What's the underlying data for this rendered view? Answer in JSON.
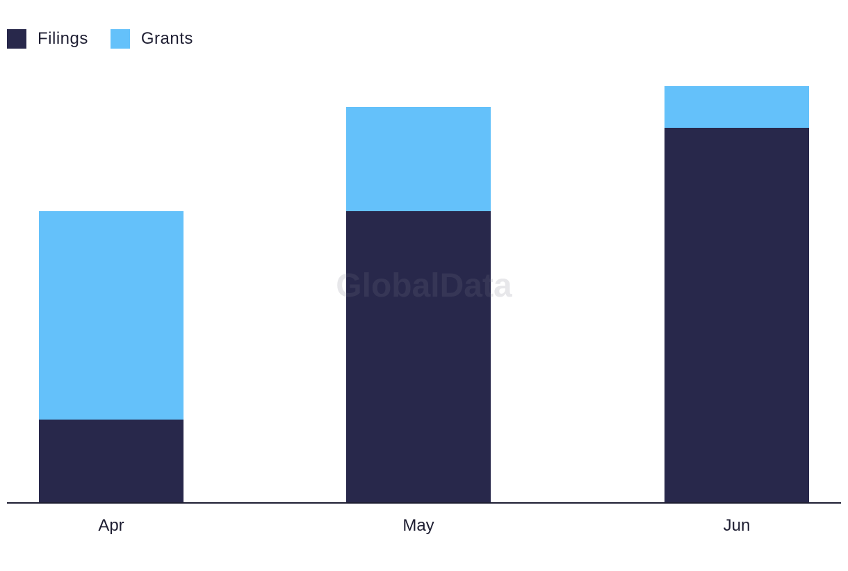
{
  "chart_data": {
    "type": "bar",
    "stacked": true,
    "categories": [
      "Apr",
      "May",
      "Jun"
    ],
    "series": [
      {
        "name": "Filings",
        "values": [
          4,
          14,
          18
        ],
        "color": "#28284b"
      },
      {
        "name": "Grants",
        "values": [
          10,
          5,
          2
        ],
        "color": "#64c1fa"
      }
    ],
    "ylim": [
      0,
      20
    ],
    "grid": false,
    "legend_position": "top-left",
    "title": "",
    "xlabel": "",
    "ylabel": ""
  },
  "watermark": "GlobalData"
}
